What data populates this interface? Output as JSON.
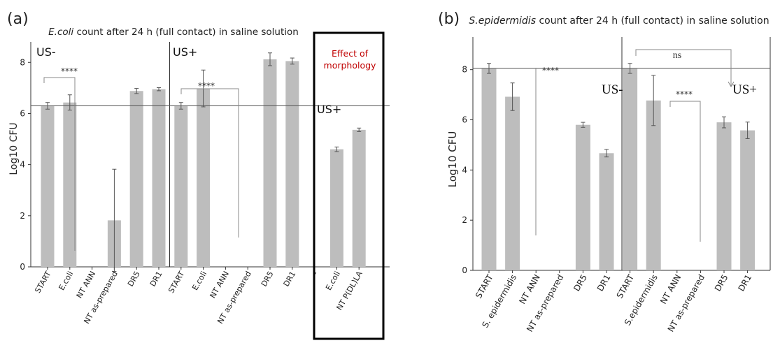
{
  "colors": {
    "bar": "#bdbdbd",
    "axis": "#333333",
    "box": "#000000",
    "morphology_text": "#c00000",
    "ref_line": "#555555",
    "bracket": "#888888"
  },
  "chart_data": [
    {
      "type": "bar",
      "panel_label": "(a)",
      "title_italic": "E.coli",
      "title_rest": " count after 24 h (full contact) in saline solution",
      "ylabel": "Log10 CFU",
      "xlabel": "",
      "ylim": [
        0,
        8.8
      ],
      "yticks": [
        "0",
        "2",
        "4",
        "6",
        "8"
      ],
      "reference_line": 6.3,
      "grid": false,
      "categories": [
        "START",
        "E.coli",
        "NT ANN",
        "NT as-prepared",
        "DR5",
        "DR1",
        "START",
        "E.coli",
        "NT ANN",
        "NT as-prepared",
        "DR5",
        "DR1",
        "-",
        "E.coli",
        "NT P(DL)LA"
      ],
      "values": [
        6.3,
        6.43,
        0,
        1.82,
        6.88,
        6.95,
        6.3,
        6.98,
        0,
        0,
        8.12,
        8.05,
        null,
        4.6,
        5.36
      ],
      "errors": [
        0.13,
        0.3,
        0,
        2.0,
        0.1,
        0.06,
        0.13,
        0.72,
        0,
        0,
        0.25,
        0.12,
        null,
        0.09,
        0.07
      ],
      "group_labels": [
        {
          "text": "US-"
        },
        {
          "text": "US+"
        },
        {
          "text": "US+"
        }
      ],
      "annotations": [
        {
          "text": "****"
        },
        {
          "text": "****"
        },
        {
          "text": "Effect of morphology"
        }
      ]
    },
    {
      "type": "bar",
      "panel_label": "(b)",
      "title_italic": "S.epidermidis",
      "title_rest": " count after 24 h (full contact) in saline solution",
      "ylabel": "Log10 CFU",
      "xlabel": "",
      "ylim": [
        0,
        9.3
      ],
      "yticks": [
        "0",
        "2",
        "4",
        "6",
        "8"
      ],
      "reference_line": 8.05,
      "grid": false,
      "categories": [
        "START",
        "S. epidermidis",
        "NT ANN",
        "NT as-prepared",
        "DR5",
        "DR1",
        "START",
        "S.epidermidis",
        "NT ANN",
        "NT as-prepared",
        "DR5",
        "DR1"
      ],
      "values": [
        8.05,
        6.92,
        0,
        0,
        5.8,
        4.67,
        8.05,
        6.77,
        0,
        0,
        5.9,
        5.58
      ],
      "errors": [
        0.2,
        0.55,
        0,
        0,
        0.1,
        0.15,
        0.2,
        1.0,
        0,
        0,
        0.22,
        0.33
      ],
      "group_labels": [
        {
          "text": "US-"
        },
        {
          "text": "US+"
        }
      ],
      "annotations": [
        {
          "text": "****"
        },
        {
          "text": "****"
        },
        {
          "text": "ns"
        }
      ]
    }
  ]
}
